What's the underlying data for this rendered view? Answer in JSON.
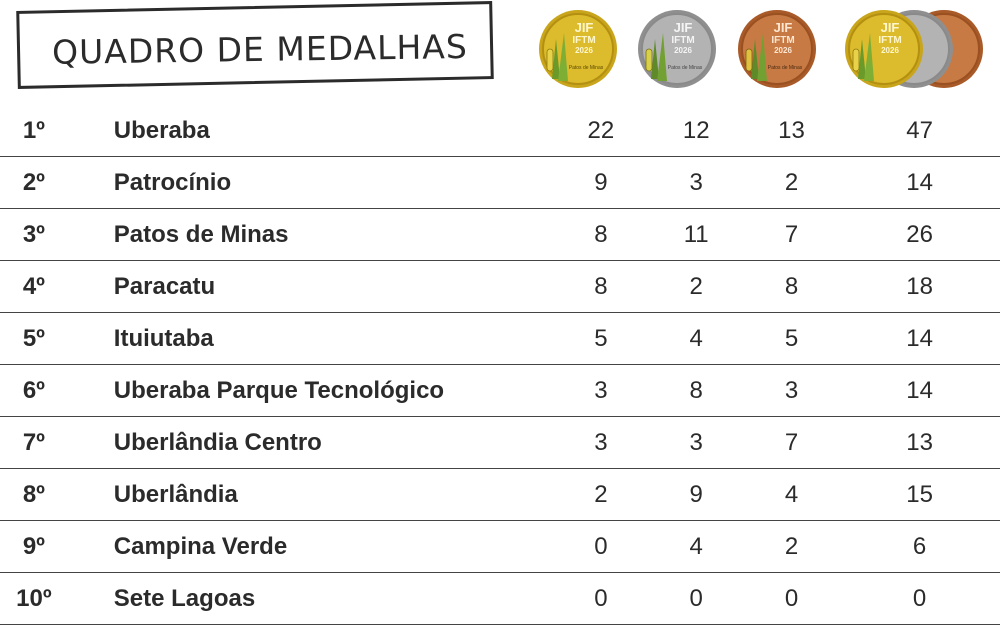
{
  "title": "QUADRO DE MEDALHAS",
  "medals": {
    "gold": {
      "icon": "gold-medal-icon",
      "color": "#d4b01e",
      "text": [
        "JIF",
        "IFTM",
        "2026",
        "Patos de Minas"
      ]
    },
    "silver": {
      "icon": "silver-medal-icon",
      "color": "#a9a9a9",
      "text": [
        "JIF",
        "IFTM",
        "2026",
        "Patos de Minas"
      ]
    },
    "bronze": {
      "icon": "bronze-medal-icon",
      "color": "#c0703a",
      "text": [
        "JIF",
        "IFTM",
        "2026",
        "Patos de Minas"
      ]
    },
    "total": {
      "icon": "all-medals-icon"
    }
  },
  "rows": [
    {
      "rank": "1º",
      "name": "Uberaba",
      "gold": "22",
      "silver": "12",
      "bronze": "13",
      "total": "47"
    },
    {
      "rank": "2º",
      "name": "Patrocínio",
      "gold": "9",
      "silver": "3",
      "bronze": "2",
      "total": "14"
    },
    {
      "rank": "3º",
      "name": "Patos de Minas",
      "gold": "8",
      "silver": "11",
      "bronze": "7",
      "total": "26"
    },
    {
      "rank": "4º",
      "name": "Paracatu",
      "gold": "8",
      "silver": "2",
      "bronze": "8",
      "total": "18"
    },
    {
      "rank": "5º",
      "name": "Ituiutaba",
      "gold": "5",
      "silver": "4",
      "bronze": "5",
      "total": "14"
    },
    {
      "rank": "6º",
      "name": "Uberaba Parque Tecnológico",
      "gold": "3",
      "silver": "8",
      "bronze": "3",
      "total": "14"
    },
    {
      "rank": "7º",
      "name": "Uberlândia Centro",
      "gold": "3",
      "silver": "3",
      "bronze": "7",
      "total": "13"
    },
    {
      "rank": "8º",
      "name": "Uberlândia",
      "gold": "2",
      "silver": "9",
      "bronze": "4",
      "total": "15"
    },
    {
      "rank": "9º",
      "name": "Campina Verde",
      "gold": "0",
      "silver": "4",
      "bronze": "2",
      "total": "6"
    },
    {
      "rank": "10º",
      "name": "Sete Lagoas",
      "gold": "0",
      "silver": "0",
      "bronze": "0",
      "total": "0"
    }
  ]
}
